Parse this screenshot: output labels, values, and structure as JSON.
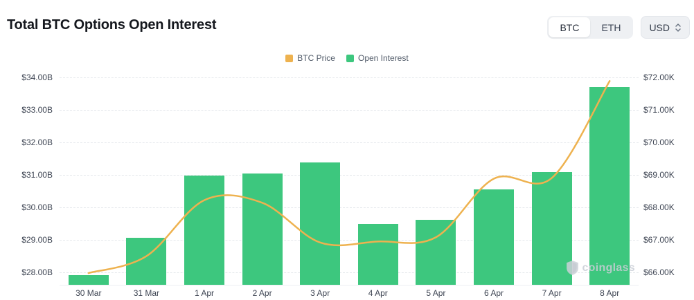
{
  "header": {
    "title": "Total BTC Options Open Interest",
    "coin_toggle": {
      "options": [
        "BTC",
        "ETH"
      ],
      "selected": "BTC"
    },
    "currency_select": {
      "value": "USD"
    }
  },
  "legend": {
    "items": [
      {
        "label": "BTC Price",
        "color": "#EEB24F"
      },
      {
        "label": "Open Interest",
        "color": "#3DC77E"
      }
    ]
  },
  "watermark": {
    "label": "coinglass"
  },
  "chart_data": {
    "type": "bar",
    "title": "Total BTC Options Open Interest",
    "categories": [
      "30 Mar",
      "31 Mar",
      "1 Apr",
      "2 Apr",
      "3 Apr",
      "4 Apr",
      "5 Apr",
      "6 Apr",
      "7 Apr",
      "8 Apr"
    ],
    "series": [
      {
        "name": "Open Interest",
        "type": "bar",
        "axis": "left",
        "color": "#3DC77E",
        "unit": "USD billions",
        "values": [
          27.92,
          29.06,
          30.98,
          31.04,
          31.39,
          29.49,
          29.62,
          30.55,
          31.08,
          33.69
        ]
      },
      {
        "name": "BTC Price",
        "type": "line",
        "axis": "right",
        "color": "#EEB24F",
        "unit": "USD thousands",
        "values": [
          65.98,
          66.5,
          68.22,
          68.14,
          66.92,
          66.95,
          67.08,
          68.88,
          68.9,
          71.88
        ]
      }
    ],
    "left_axis": {
      "ticks": [
        "$34.00B",
        "$33.00B",
        "$32.00B",
        "$31.00B",
        "$30.00B",
        "$29.00B",
        "$28.00B"
      ],
      "tick_values": [
        34,
        33,
        32,
        31,
        30,
        29,
        28
      ],
      "min": 27.62,
      "max": 34.14
    },
    "right_axis": {
      "ticks": [
        "$72.00K",
        "$71.00K",
        "$70.00K",
        "$69.00K",
        "$68.00K",
        "$67.00K",
        "$66.00K"
      ],
      "tick_values": [
        72,
        71,
        70,
        69,
        68,
        67,
        66
      ],
      "min": 65.62,
      "max": 72.14
    },
    "grid": true,
    "legend_position": "top-center"
  }
}
